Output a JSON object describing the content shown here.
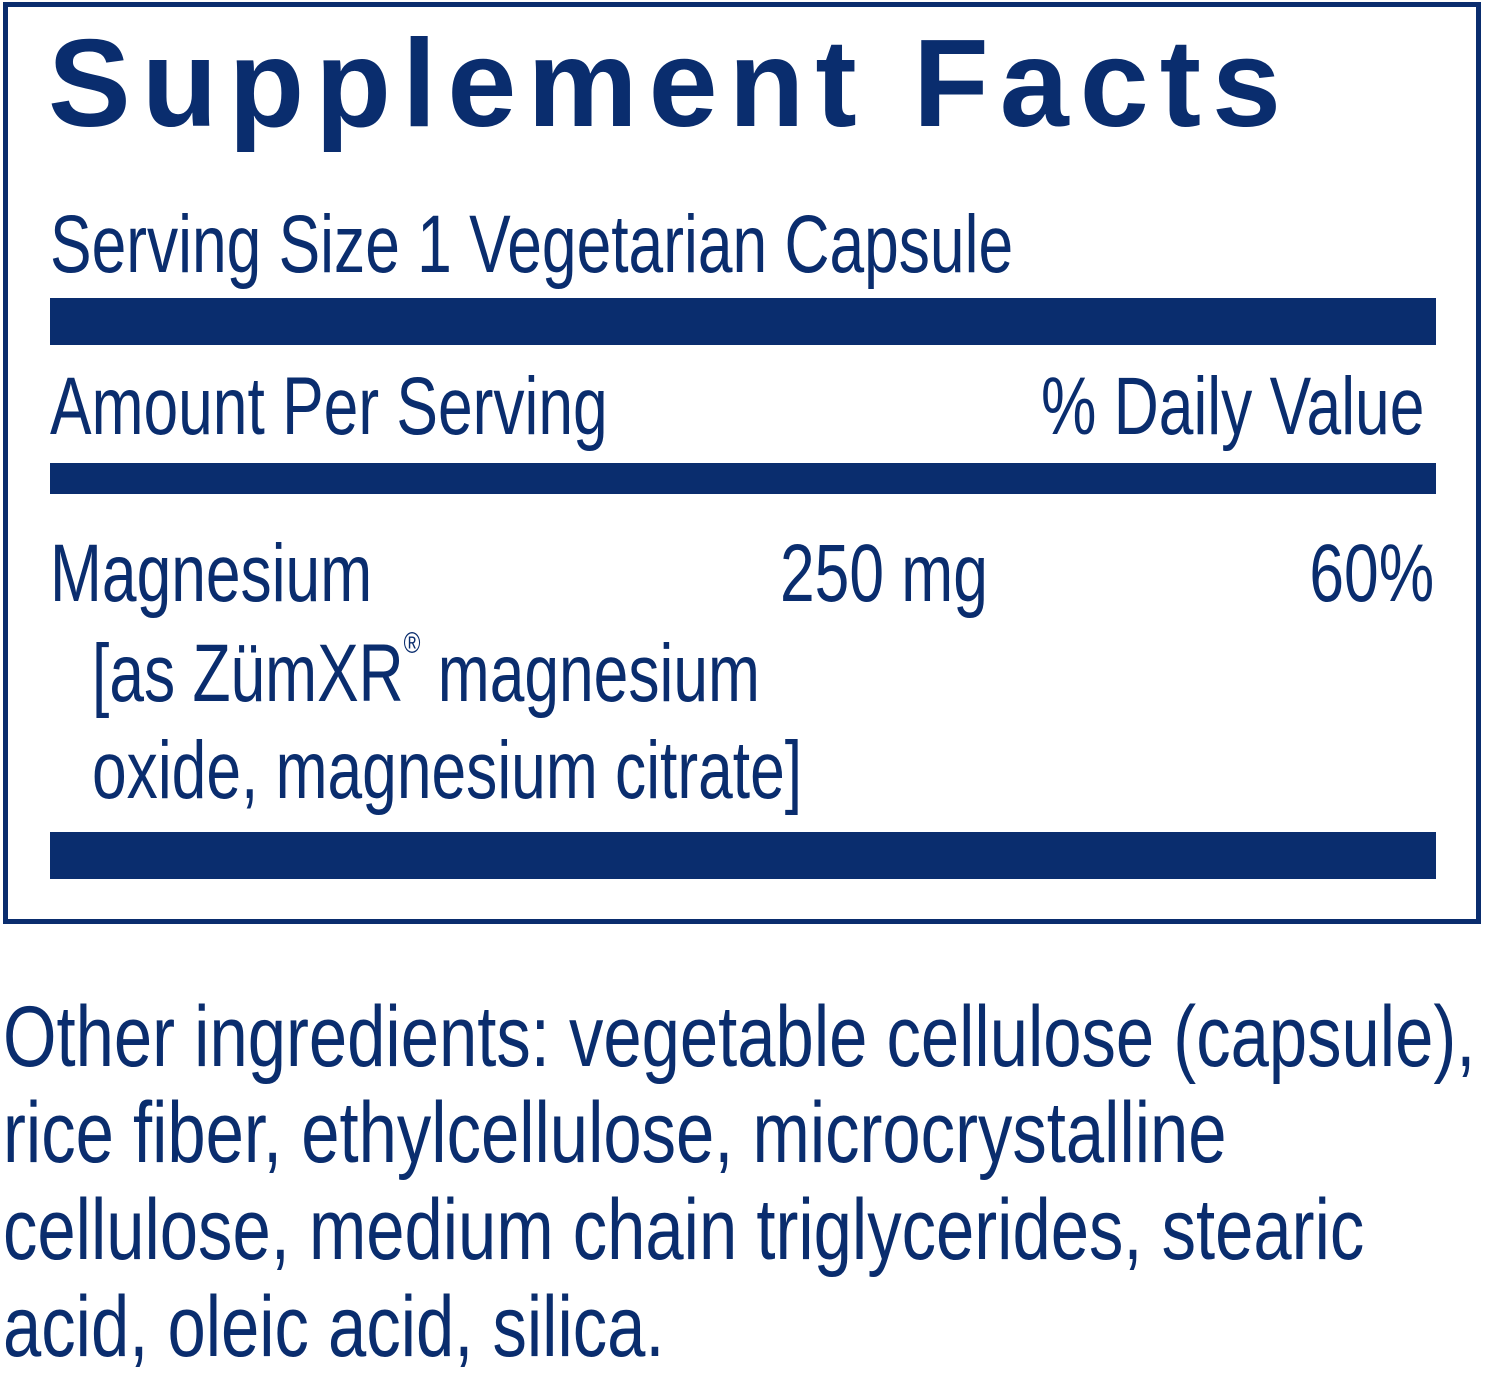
{
  "title": "Supplement Facts",
  "serving_size": "Serving Size 1 Vegetarian Capsule",
  "header": {
    "amount": "Amount Per Serving",
    "daily_value": "% Daily Value"
  },
  "nutrients": [
    {
      "name": "Magnesium",
      "amount": "250 mg",
      "dv": "60%",
      "source_1a": "[as ZümXR",
      "source_reg": "®",
      "source_1b": " magnesium",
      "source_2": "oxide, magnesium citrate]"
    }
  ],
  "other_ingredients": [
    "Other ingredients: vegetable cellulose (capsule),",
    "rice fiber, ethylcellulose, microcrystalline",
    "cellulose, medium chain triglycerides, stearic",
    "acid, oleic acid, silica."
  ],
  "colors": {
    "ink": "#0a2d6e"
  }
}
